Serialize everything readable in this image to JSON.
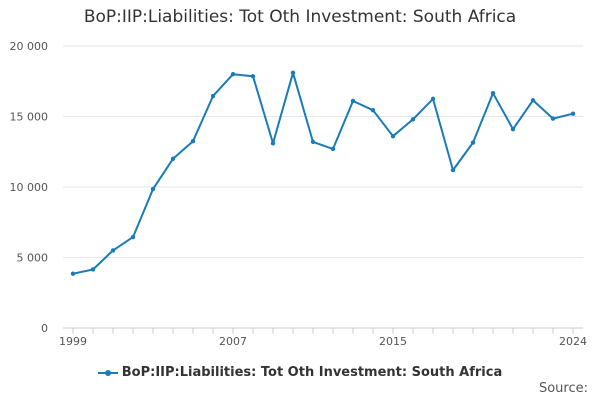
{
  "chart_data": {
    "type": "line",
    "title": "BoP:IIP:Liabilities: Tot Oth Investment: South Africa",
    "x": [
      1999,
      2000,
      2001,
      2002,
      2003,
      2004,
      2005,
      2006,
      2007,
      2008,
      2009,
      2010,
      2011,
      2012,
      2013,
      2014,
      2015,
      2016,
      2017,
      2018,
      2019,
      2020,
      2021,
      2022,
      2023,
      2024
    ],
    "series": [
      {
        "name": "BoP:IIP:Liabilities: Tot Oth Investment: South Africa",
        "values": [
          3850,
          4150,
          5500,
          6450,
          9850,
          12000,
          13250,
          16450,
          18000,
          17850,
          13100,
          18100,
          13200,
          12700,
          16100,
          15450,
          13600,
          14800,
          16250,
          11200,
          13150,
          16650,
          14100,
          16150,
          14850,
          15200
        ],
        "color": "#1a7bb9"
      }
    ],
    "ylim": [
      0,
      20000
    ],
    "yticks": [
      0,
      5000,
      10000,
      15000,
      20000
    ],
    "ytick_labels": [
      "0",
      "5 000",
      "10 000",
      "15 000",
      "20 000"
    ],
    "xtick_labels": [
      "1999",
      "2007",
      "2015",
      "2024"
    ],
    "xlabel": "",
    "ylabel": "",
    "grid": "horizontal",
    "legend_position": "bottom-center"
  },
  "footer": {
    "source_label": "Source:"
  }
}
